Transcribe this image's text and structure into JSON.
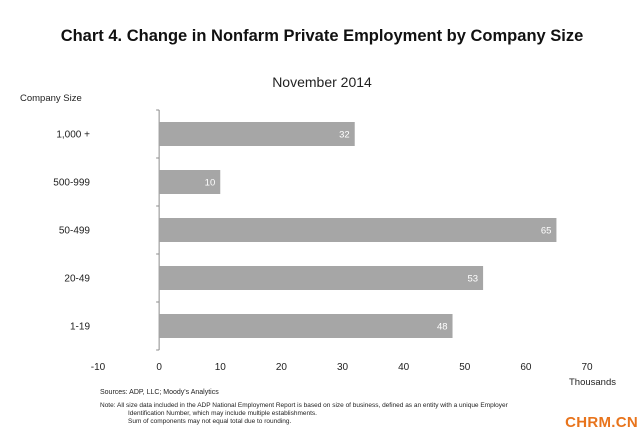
{
  "title": "Chart 4. Change in Nonfarm Private Employment by Company Size",
  "subtitle": "November 2014",
  "chart_data": {
    "type": "bar",
    "orientation": "horizontal",
    "title": "Chart 4. Change in Nonfarm Private Employment by Company Size",
    "subtitle": "November 2014",
    "ylabel": "Company Size",
    "xlabel": "Thousands",
    "categories": [
      "1,000 +",
      "500-999",
      "50-499",
      "20-49",
      "1-19"
    ],
    "values": [
      32,
      10,
      65,
      53,
      48
    ],
    "xlim": [
      -10,
      70
    ],
    "xticks": [
      -10,
      0,
      10,
      20,
      30,
      40,
      50,
      60,
      70
    ],
    "grid": false,
    "bar_color": "#a6a6a6",
    "label_color": "#ffffff"
  },
  "sources": "Sources: ADP, LLC; Moody's Analytics",
  "note": {
    "line1": "Note:  All size data included in the ADP National Employment Report is based on size of business, defined as an entity with a unique Employer",
    "line2": "Identification Number, which may include multiple establishments.",
    "line3": "Sum of components may not equal total due to rounding."
  },
  "watermark": "CHRM.CN"
}
